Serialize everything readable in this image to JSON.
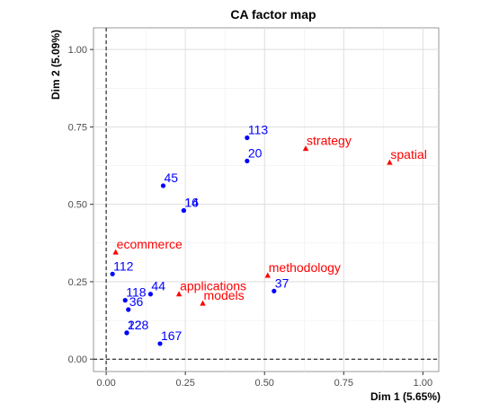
{
  "chart_data": {
    "type": "scatter",
    "title": "CA factor map",
    "xlabel": "Dim 1 (5.65%)",
    "ylabel": "Dim 2 (5.09%)",
    "xlim": [
      -0.04,
      1.05
    ],
    "ylim": [
      -0.04,
      1.07
    ],
    "x_ticks": [
      "0.00",
      "0.25",
      "0.50",
      "0.75",
      "1.00"
    ],
    "y_ticks": [
      "0.00",
      "0.25",
      "0.50",
      "0.75",
      "1.00"
    ],
    "grid": true,
    "reference_lines": {
      "x": 0,
      "y": 0,
      "style": "dashed"
    },
    "colors": {
      "rows": "#0000ff",
      "columns": "#ff0000"
    },
    "rows": [
      {
        "label": "113",
        "x": 0.445,
        "y": 0.715
      },
      {
        "label": "20",
        "x": 0.445,
        "y": 0.64
      },
      {
        "label": "45",
        "x": 0.18,
        "y": 0.56
      },
      {
        "label": "16",
        "x": 0.245,
        "y": 0.48
      },
      {
        "label": "14",
        "x": 0.245,
        "y": 0.48
      },
      {
        "label": "112",
        "x": 0.02,
        "y": 0.275
      },
      {
        "label": "44",
        "x": 0.14,
        "y": 0.21
      },
      {
        "label": "118",
        "x": 0.06,
        "y": 0.19
      },
      {
        "label": "36",
        "x": 0.07,
        "y": 0.16
      },
      {
        "label": "22",
        "x": 0.065,
        "y": 0.085
      },
      {
        "label": "128",
        "x": 0.065,
        "y": 0.085
      },
      {
        "label": "167",
        "x": 0.17,
        "y": 0.05
      },
      {
        "label": "37",
        "x": 0.53,
        "y": 0.22
      }
    ],
    "columns": [
      {
        "label": "strategy",
        "x": 0.63,
        "y": 0.68
      },
      {
        "label": "spatial",
        "x": 0.895,
        "y": 0.635
      },
      {
        "label": "ecommerce",
        "x": 0.03,
        "y": 0.345
      },
      {
        "label": "methodology",
        "x": 0.51,
        "y": 0.27
      },
      {
        "label": "applications",
        "x": 0.23,
        "y": 0.21
      },
      {
        "label": "models",
        "x": 0.305,
        "y": 0.18
      }
    ]
  }
}
